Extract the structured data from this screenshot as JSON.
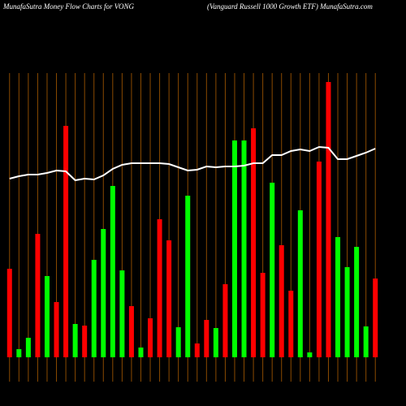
{
  "chart_data": {
    "type": "bar",
    "title": "MunafaSutra  Money Flow  Charts for VONG",
    "subtitle": "(Vanguard Russell 1000   Growth ETF) MunafaSutra.com",
    "categories": [
      null,
      null,
      null,
      null,
      null,
      null,
      null,
      null,
      null,
      null,
      null,
      null,
      null,
      null,
      null,
      null,
      null,
      null,
      null,
      null,
      null,
      null,
      null,
      null,
      null,
      null,
      null,
      null,
      null,
      null,
      null,
      null,
      null,
      null,
      null,
      null,
      null,
      null,
      null,
      null
    ],
    "values": [
      109,
      10,
      24,
      152,
      100,
      68,
      285,
      41,
      39,
      120,
      158,
      211,
      107,
      63,
      12,
      48,
      170,
      144,
      37,
      199,
      17,
      46,
      36,
      90,
      267,
      267,
      282,
      104,
      215,
      138,
      82,
      181,
      6,
      241,
      339,
      148,
      111,
      136,
      38,
      97
    ],
    "colors": [
      "#ff0000",
      "#00ff00",
      "#00ff00",
      "#ff0000",
      "#00ff00",
      "#ff0000",
      "#ff0000",
      "#00ff00",
      "#ff0000",
      "#00ff00",
      "#00ff00",
      "#00ff00",
      "#00ff00",
      "#ff0000",
      "#00ff00",
      "#ff0000",
      "#ff0000",
      "#ff0000",
      "#00ff00",
      "#00ff00",
      "#ff0000",
      "#ff0000",
      "#00ff00",
      "#ff0000",
      "#00ff00",
      "#00ff00",
      "#ff0000",
      "#ff0000",
      "#00ff00",
      "#ff0000",
      "#ff0000",
      "#00ff00",
      "#00ff00",
      "#ff0000",
      "#ff0000",
      "#00ff00",
      "#00ff00",
      "#00ff00",
      "#00ff00",
      "#ff0000"
    ],
    "line": {
      "color": "#ffffff",
      "values": [
        220,
        223,
        225,
        225,
        227,
        230,
        229,
        218,
        220,
        219,
        224,
        232,
        237,
        239,
        239,
        239,
        239,
        238,
        234,
        230,
        231,
        235,
        234,
        235,
        235,
        236,
        239,
        239,
        249,
        249,
        254,
        256,
        254,
        259,
        258,
        244,
        244,
        248,
        252,
        257
      ]
    },
    "ylim": [
      0,
      350
    ]
  }
}
